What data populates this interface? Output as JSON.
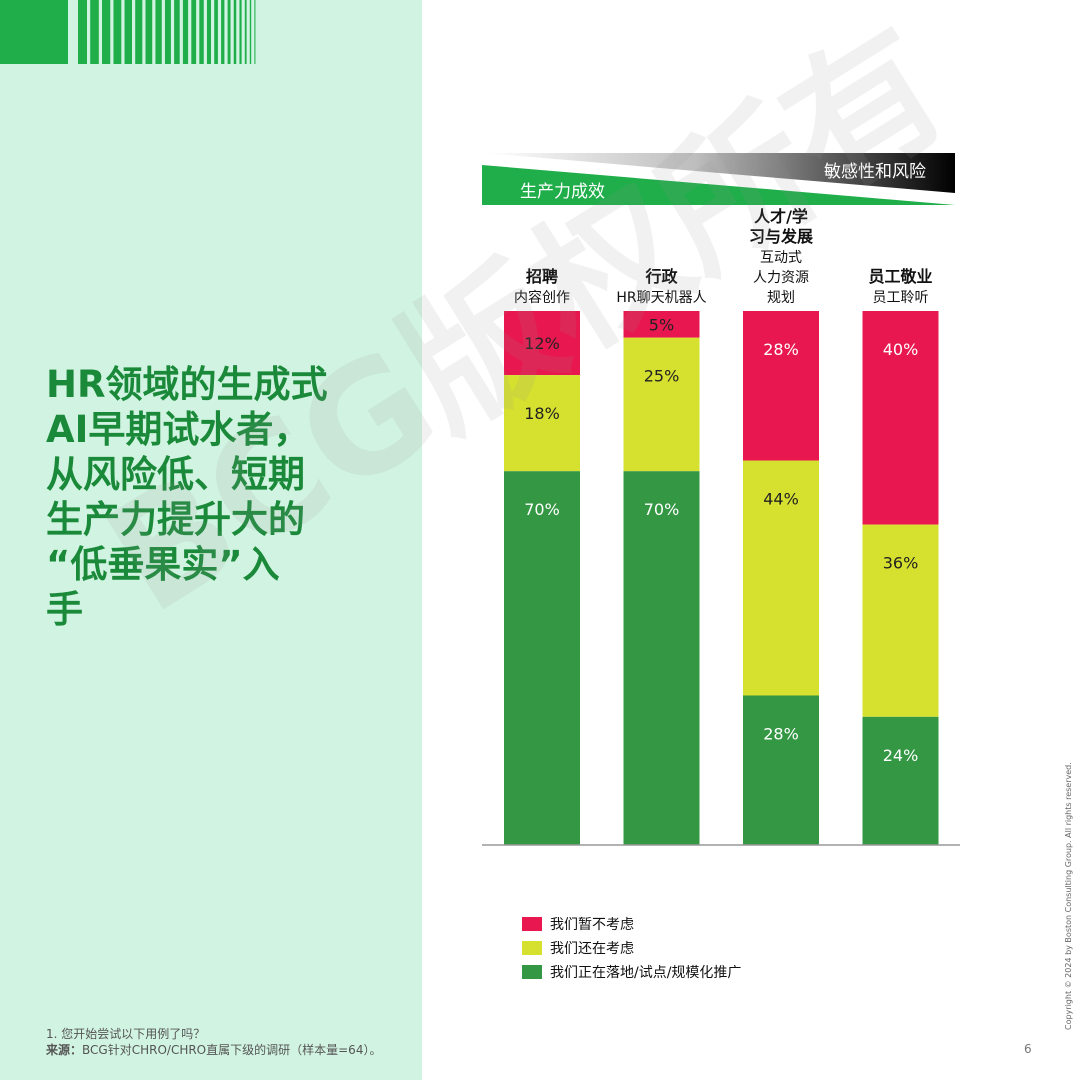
{
  "headline": {
    "lines": [
      "HR领域的生成式",
      "AI早期试水者，",
      "从风险低、短期",
      "生产力提升大的",
      "“低垂果实”入",
      "手"
    ]
  },
  "header_banner": {
    "productivity_label": "生产力成效",
    "risk_label": "敏感性和风险"
  },
  "watermark": "BCG版权所有",
  "colors": {
    "left_panel": "#d1f3e1",
    "headline": "#1a8a3a",
    "stripes": "#1fae4a",
    "not_considering": "#e8174f",
    "still_considering": "#d6e12f",
    "deploying": "#339743"
  },
  "chart_data": {
    "type": "stacked-bar",
    "categories": [
      {
        "title_lines": [
          "招聘"
        ],
        "sub_lines": [
          "内容创作"
        ]
      },
      {
        "title_lines": [
          "行政"
        ],
        "sub_lines": [
          "HR聊天机器人"
        ]
      },
      {
        "title_lines": [
          "人才/学",
          "习与发展"
        ],
        "sub_lines": [
          "互动式",
          "人力资源",
          "规划"
        ]
      },
      {
        "title_lines": [
          "员工敬业"
        ],
        "sub_lines": [
          "员工聆听"
        ]
      }
    ],
    "series": [
      {
        "name": "我们暂不考虑",
        "color": "#e8174f",
        "values": [
          12,
          5,
          28,
          40
        ],
        "labels": [
          "12%",
          "5%",
          "28%",
          "40%"
        ]
      },
      {
        "name": "我们还在考虑",
        "color": "#d6e12f",
        "values": [
          18,
          25,
          44,
          36
        ],
        "labels": [
          "18%",
          "25%",
          "44%",
          "36%"
        ]
      },
      {
        "name": "我们正在落地/试点/规模化推广",
        "color": "#339743",
        "values": [
          70,
          70,
          28,
          24
        ],
        "labels": [
          "70%",
          "70%",
          "28%",
          "24%"
        ]
      }
    ],
    "stack_order_top_to_bottom": [
      "我们暂不考虑",
      "我们还在考虑",
      "我们正在落地/试点/规模化推广"
    ],
    "ylim": [
      0,
      100
    ],
    "legend_position": "bottom-left"
  },
  "footnote": {
    "note": "1.  您开始尝试以下用例了吗？",
    "source_label": "来源：",
    "source_text": "BCG针对CHRO/CHRO直属下级的调研（样本量=64）。"
  },
  "copyright": "Copyright © 2024 by Boston Consulting Group. All rights reserved.",
  "page_number": "6"
}
